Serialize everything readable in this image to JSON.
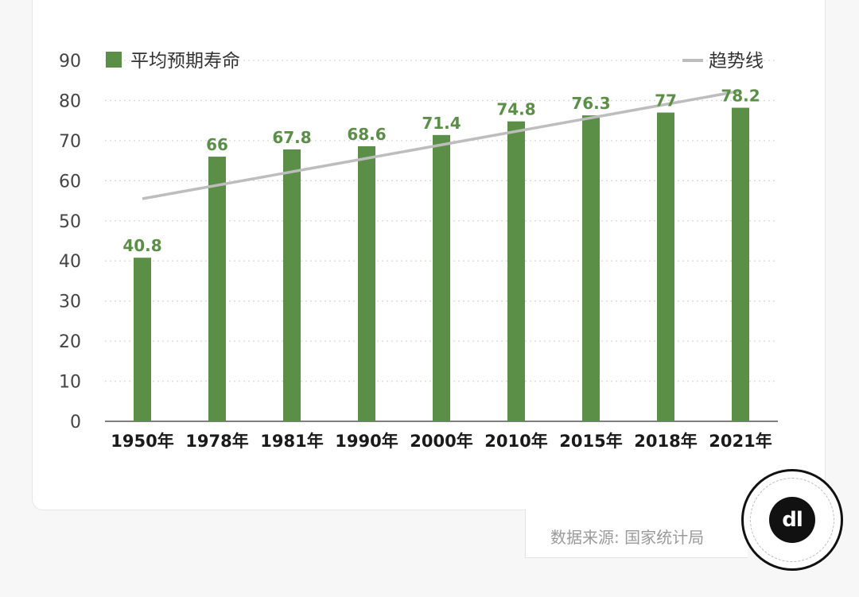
{
  "chart_data": {
    "type": "bar",
    "categories": [
      "1950年",
      "1978年",
      "1981年",
      "1990年",
      "2000年",
      "2010年",
      "2015年",
      "2018年",
      "2021年"
    ],
    "series": [
      {
        "name": "平均预期寿命",
        "values": [
          40.8,
          66,
          67.8,
          68.6,
          71.4,
          74.8,
          76.3,
          77,
          78.2
        ]
      }
    ],
    "trendline": {
      "name": "趋势线",
      "start": 55.5,
      "end": 82.4
    },
    "data_labels": [
      "40.8",
      "66",
      "67.8",
      "68.6",
      "71.4",
      "74.8",
      "76.3",
      "77",
      "78.2"
    ],
    "y_ticks": [
      "0",
      "10",
      "20",
      "30",
      "40",
      "50",
      "60",
      "70",
      "80",
      "90"
    ],
    "ylim": [
      0,
      90
    ],
    "grid": "horizontal dotted",
    "legend_position": "top",
    "colors": {
      "bar": "#5b8f48",
      "label": "#5b8f48",
      "trend": "#bdbdbd",
      "grid": "#d9d9d9",
      "axis": "#555555"
    }
  },
  "footer": {
    "source": "数据来源: 国家统计局"
  }
}
